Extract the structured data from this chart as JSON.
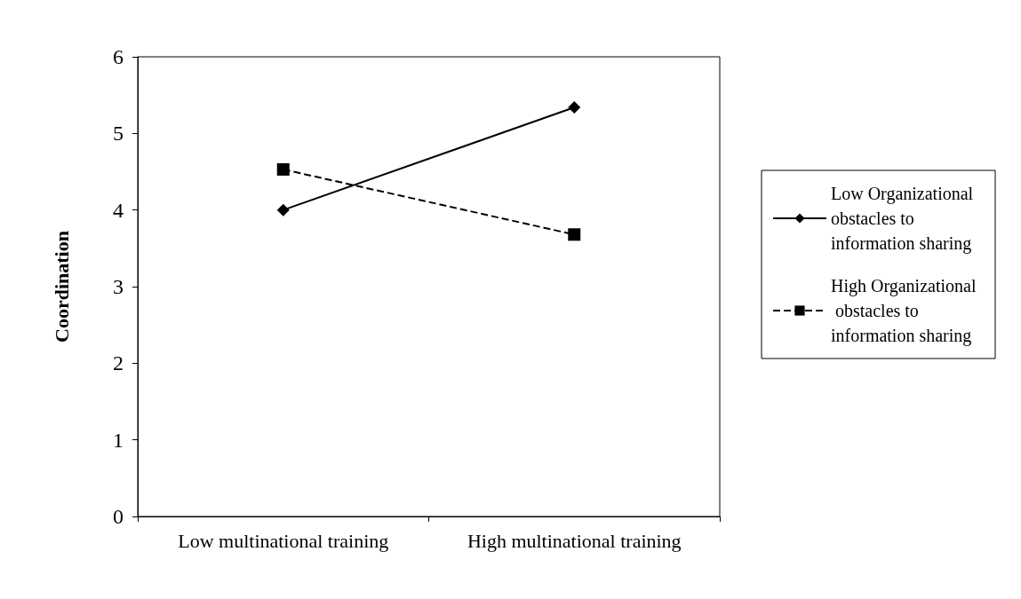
{
  "chart_data": {
    "type": "line",
    "ylabel": "Coordination",
    "categories": [
      "Low multinational training",
      "High multinational training"
    ],
    "series": [
      {
        "name": "Low Organizational obstacles to information sharing",
        "color": "#000000",
        "values": [
          4.0,
          5.34
        ],
        "marker": "diamond",
        "line_style": "solid"
      },
      {
        "name": "High Organizational obstacles to information sharing",
        "color": "#000000",
        "values": [
          4.53,
          3.68
        ],
        "marker": "square",
        "line_style": "dashed"
      }
    ],
    "ylim": [
      0,
      6
    ],
    "yticks": [
      0,
      1,
      2,
      3,
      4,
      5,
      6
    ],
    "grid": false,
    "legend": "right"
  }
}
